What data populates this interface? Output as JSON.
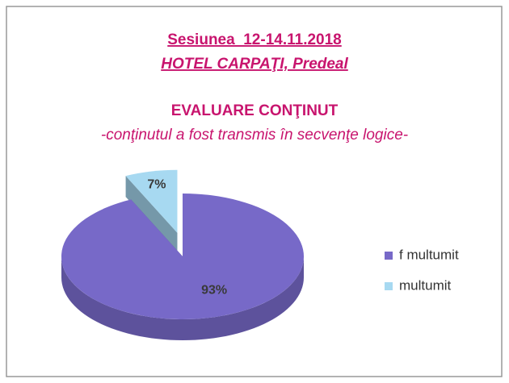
{
  "chart_data": {
    "type": "pie",
    "title": "Sesiunea  12-14.11.2018",
    "subtitle": "HOTEL CARPAŢI, Predeal",
    "heading": "EVALUARE CONŢINUT",
    "caption": "-conţinutul a fost transmis în secvenţe logice-",
    "categories": [
      "f multumit",
      "multumit"
    ],
    "values": [
      93,
      7
    ],
    "value_labels": [
      "93%",
      "7%"
    ],
    "colors": [
      "#7769c8",
      "#a7d9f1"
    ],
    "exploded": [
      false,
      true
    ],
    "legend": "right"
  }
}
